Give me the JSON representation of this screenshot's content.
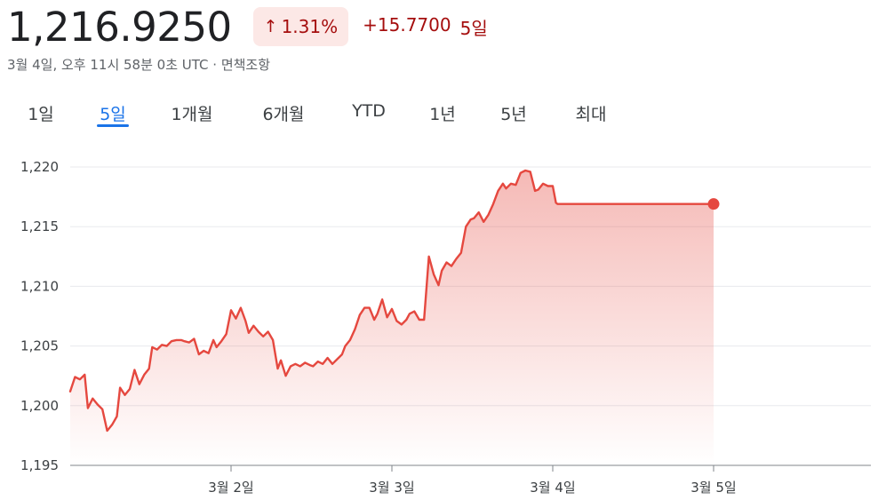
{
  "header": {
    "price": "1,216.9250",
    "badge_arrow": "↑",
    "badge_pct": "1.31%",
    "change_abs": "+15.7700",
    "change_period": "5일"
  },
  "subline": "3월 4일, 오후 11시 58분 0초 UTC · 면책조항",
  "tabs": [
    {
      "label": "1일",
      "active": false
    },
    {
      "label": "5일",
      "active": true
    },
    {
      "label": "1개월",
      "active": false
    },
    {
      "label": "6개월",
      "active": false
    },
    {
      "label": "YTD",
      "active": false
    },
    {
      "label": "1년",
      "active": false
    },
    {
      "label": "5년",
      "active": false
    },
    {
      "label": "최대",
      "active": false
    }
  ],
  "colors": {
    "line": "#e5483f",
    "accent": "#1a73e8",
    "grid": "#e8eaed"
  },
  "chart_data": {
    "type": "area",
    "title": "",
    "xlabel": "",
    "ylabel": "",
    "ylim": [
      1195,
      1220
    ],
    "yticks": [
      "1,220",
      "1,215",
      "1,210",
      "1,205",
      "1,200",
      "1,195"
    ],
    "ytick_values": [
      1220,
      1215,
      1210,
      1205,
      1200,
      1195
    ],
    "xticks": [
      "3월 2일",
      "3월 3일",
      "3월 4일",
      "3월 5일"
    ],
    "xtick_values": [
      1.0,
      2.0,
      3.0,
      4.0
    ],
    "xlim": [
      0.0,
      5.0
    ],
    "grid": true,
    "series": [
      {
        "x": [
          0.0,
          0.03,
          0.06,
          0.09,
          0.11,
          0.14,
          0.17,
          0.2,
          0.23,
          0.26,
          0.29,
          0.31,
          0.34,
          0.37,
          0.4,
          0.43,
          0.46,
          0.49,
          0.51,
          0.54,
          0.57,
          0.6,
          0.63,
          0.66,
          0.69,
          0.71,
          0.74,
          0.77,
          0.8,
          0.83,
          0.86,
          0.89,
          0.91,
          0.94,
          0.97,
          1.0,
          1.03,
          1.06,
          1.09,
          1.11,
          1.14,
          1.17,
          1.2,
          1.23,
          1.26,
          1.29,
          1.31,
          1.34,
          1.37,
          1.4,
          1.43,
          1.46,
          1.49,
          1.51,
          1.54,
          1.57,
          1.6,
          1.63,
          1.66,
          1.69,
          1.71,
          1.74,
          1.77,
          1.8,
          1.83,
          1.86,
          1.89,
          1.91,
          1.94,
          1.97,
          2.0,
          2.03,
          2.06,
          2.09,
          2.11,
          2.14,
          2.17,
          2.2,
          2.23,
          2.26,
          2.29,
          2.31,
          2.34,
          2.37,
          2.4,
          2.43,
          2.46,
          2.49,
          2.51,
          2.54,
          2.57,
          2.6,
          2.63,
          2.66,
          2.69,
          2.71,
          2.74,
          2.77,
          2.8,
          2.83,
          2.86,
          2.89,
          2.91,
          2.94,
          2.97,
          3.0,
          3.02,
          3.03,
          3.06,
          3.09,
          3.11,
          3.14,
          3.17,
          3.2,
          3.23,
          3.26,
          3.29,
          3.31,
          3.34,
          3.37,
          3.4,
          3.43,
          3.46,
          3.49,
          3.51,
          3.54,
          3.57,
          3.6,
          3.63,
          3.66,
          3.69,
          3.71,
          3.74,
          3.77,
          3.8,
          3.83,
          3.86,
          3.89,
          3.91,
          3.94,
          3.97,
          4.0
        ],
        "values": [
          1201.2,
          1202.4,
          1202.2,
          1202.6,
          1199.8,
          1200.6,
          1200.1,
          1199.7,
          1197.9,
          1198.4,
          1199.1,
          1201.5,
          1200.9,
          1201.4,
          1203.0,
          1201.8,
          1202.6,
          1203.1,
          1204.9,
          1204.7,
          1205.1,
          1205.0,
          1205.4,
          1205.5,
          1205.5,
          1205.4,
          1205.3,
          1205.6,
          1204.3,
          1204.6,
          1204.4,
          1205.5,
          1204.9,
          1205.4,
          1206.0,
          1208.0,
          1207.3,
          1208.2,
          1207.1,
          1206.1,
          1206.7,
          1206.2,
          1205.8,
          1206.2,
          1205.5,
          1203.1,
          1203.8,
          1202.5,
          1203.3,
          1203.5,
          1203.3,
          1203.6,
          1203.4,
          1203.3,
          1203.7,
          1203.5,
          1204.0,
          1203.5,
          1203.9,
          1204.3,
          1205.0,
          1205.5,
          1206.4,
          1207.6,
          1208.2,
          1208.2,
          1207.2,
          1207.7,
          1208.9,
          1207.4,
          1208.1,
          1207.1,
          1206.8,
          1207.2,
          1207.7,
          1207.9,
          1207.2,
          1207.2,
          1212.5,
          1211.0,
          1210.1,
          1211.3,
          1212.0,
          1211.7,
          1212.3,
          1212.8,
          1215.0,
          1215.6,
          1215.7,
          1216.2,
          1215.4,
          1216.0,
          1216.9,
          1218.0,
          1218.6,
          1218.2,
          1218.6,
          1218.5,
          1219.5,
          1219.7,
          1219.6,
          1218.0,
          1218.1,
          1218.6,
          1218.4,
          1218.4,
          1217.0,
          1216.9,
          1216.9,
          1216.9,
          1216.9,
          1216.9,
          1216.9,
          1216.9,
          1216.9,
          1216.9,
          1216.9,
          1216.9,
          1216.9,
          1216.9,
          1216.9,
          1216.9,
          1216.9,
          1216.9,
          1216.9,
          1216.9,
          1216.9,
          1216.9,
          1216.9,
          1216.9,
          1216.9,
          1216.9,
          1216.9,
          1216.9,
          1216.9,
          1216.9,
          1216.9,
          1216.9,
          1216.9,
          1216.9,
          1216.9,
          1216.9
        ]
      }
    ]
  }
}
